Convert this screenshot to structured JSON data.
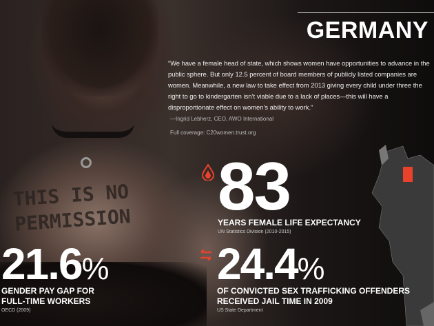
{
  "header": {
    "title": "GERMANY"
  },
  "photo": {
    "writing": [
      "THIS IS NO",
      "PERMISSION"
    ]
  },
  "quote": {
    "text": "“We have a female head of state, which shows women have opportunities to advance in the public sphere. But only 12.5 percent of board members of publicly listed companies are women. Meanwhile, a new law to take effect from 2013 giving every child under three the right to go to kindergarten isn’t viable due to a lack of places—this will have a disproportionate effect on women’s ability to work.”",
    "attribution": "—Ingrid Lebherz, CEO, AWO International",
    "coverage": "Full coverage: C20women.trust.org"
  },
  "stats": [
    {
      "value": "83",
      "unit": "",
      "label": "YEARS FEMALE LIFE EXPECTANCY",
      "source": "UN Statistics Division (2010-2015)",
      "icon": "blood-drop-icon"
    },
    {
      "value": "21.6",
      "unit": "%",
      "label_lines": [
        "GENDER PAY GAP FOR",
        "FULL-TIME WORKERS"
      ],
      "source": "OECD (2009)"
    },
    {
      "value": "24.4",
      "unit": "%",
      "label_lines": [
        "OF CONVICTED SEX TRAFFICKING OFFENDERS",
        "RECEIVED JAIL TIME IN 2009"
      ],
      "source": "US State Department",
      "icon": "exchange-arrows-icon"
    }
  ],
  "colors": {
    "accent": "#e8412c",
    "highlight_country": "#e8412c",
    "map_land": "#555555"
  }
}
